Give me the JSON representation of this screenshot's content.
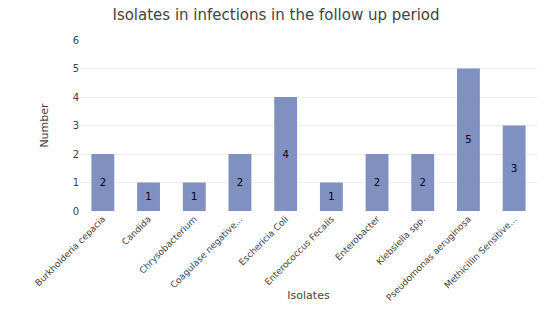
{
  "chart_data": {
    "type": "bar",
    "title": "Isolates in infections in the follow up period",
    "xlabel": "Isolates",
    "ylabel": "Number",
    "categories": [
      "Burkholderia cepacia",
      "Candida",
      "Chrysobacterium",
      "Coagulase negative...",
      "Eschericia Coli",
      "Enterococcus Fecalis",
      "Enterobacter",
      "Klebsiella spp.",
      "Pseudomonas aeruginosa",
      "Methicillin Sensitive..."
    ],
    "values": [
      2,
      1,
      1,
      2,
      4,
      1,
      2,
      2,
      5,
      3
    ],
    "color": "#8090C0",
    "ylim": [
      0,
      6
    ],
    "yticks": [
      0,
      1,
      2,
      3,
      4,
      5,
      6
    ],
    "grid": true,
    "data_labels": true
  }
}
